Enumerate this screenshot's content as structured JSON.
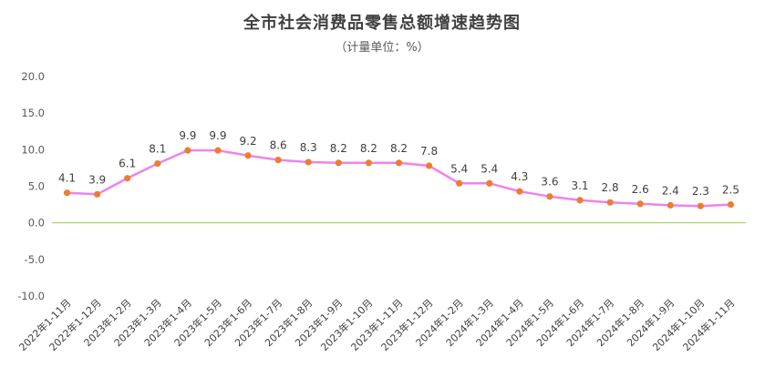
{
  "chart_data": {
    "type": "line",
    "title": "全市社会消费品零售总额增速趋势图",
    "subtitle": "（计量单位：%）",
    "xlabel": "",
    "ylabel": "",
    "categories": [
      "2022年1-11月",
      "2022年1-12月",
      "2023年1-2月",
      "2023年1-3月",
      "2023年1-4月",
      "2023年1-5月",
      "2023年1-6月",
      "2023年1-7月",
      "2023年1-8月",
      "2023年1-9月",
      "2023年1-10月",
      "2023年1-11月",
      "2023年1-12月",
      "2024年1-2月",
      "2024年1-3月",
      "2024年1-4月",
      "2024年1-5月",
      "2024年1-6月",
      "2024年1-7月",
      "2024年1-8月",
      "2024年1-9月",
      "2024年1-10月",
      "2024年1-11月"
    ],
    "values": [
      4.1,
      3.9,
      6.1,
      8.1,
      9.9,
      9.9,
      9.2,
      8.6,
      8.3,
      8.2,
      8.2,
      8.2,
      7.8,
      5.4,
      5.4,
      4.3,
      3.6,
      3.1,
      2.8,
      2.6,
      2.4,
      2.3,
      2.5
    ],
    "ylim": [
      -10,
      20
    ],
    "yticks": [
      "20.0",
      "15.0",
      "10.0",
      "5.0",
      "0.0",
      "-5.0",
      "-10.0"
    ],
    "grid": false,
    "legend": "none",
    "colors": {
      "line": "#ee82ee",
      "marker": "#ed7d31",
      "zero_line": "#92d050"
    }
  }
}
